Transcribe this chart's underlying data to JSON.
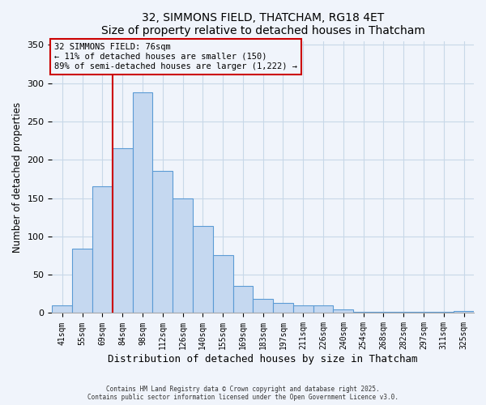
{
  "title": "32, SIMMONS FIELD, THATCHAM, RG18 4ET",
  "subtitle": "Size of property relative to detached houses in Thatcham",
  "xlabel": "Distribution of detached houses by size in Thatcham",
  "ylabel": "Number of detached properties",
  "bar_labels": [
    "41sqm",
    "55sqm",
    "69sqm",
    "84sqm",
    "98sqm",
    "112sqm",
    "126sqm",
    "140sqm",
    "155sqm",
    "169sqm",
    "183sqm",
    "197sqm",
    "211sqm",
    "226sqm",
    "240sqm",
    "254sqm",
    "268sqm",
    "282sqm",
    "297sqm",
    "311sqm",
    "325sqm"
  ],
  "bar_values": [
    10,
    84,
    165,
    215,
    288,
    185,
    150,
    114,
    76,
    35,
    18,
    13,
    10,
    10,
    5,
    2,
    2,
    2,
    2,
    2,
    3
  ],
  "bar_color": "#c5d8f0",
  "bar_edge_color": "#5b9bd5",
  "annotation_line_label": "32 SIMMONS FIELD: 76sqm",
  "annotation_line_color": "#cc0000",
  "annotation_text_line2": "← 11% of detached houses are smaller (150)",
  "annotation_text_line3": "89% of semi-detached houses are larger (1,222) →",
  "annotation_box_edge_color": "#cc0000",
  "ylim": [
    0,
    355
  ],
  "yticks": [
    0,
    50,
    100,
    150,
    200,
    250,
    300,
    350
  ],
  "footer_line1": "Contains HM Land Registry data © Crown copyright and database right 2025.",
  "footer_line2": "Contains public sector information licensed under the Open Government Licence v3.0.",
  "bg_color": "#f0f4fb",
  "grid_color": "#c8d8e8"
}
